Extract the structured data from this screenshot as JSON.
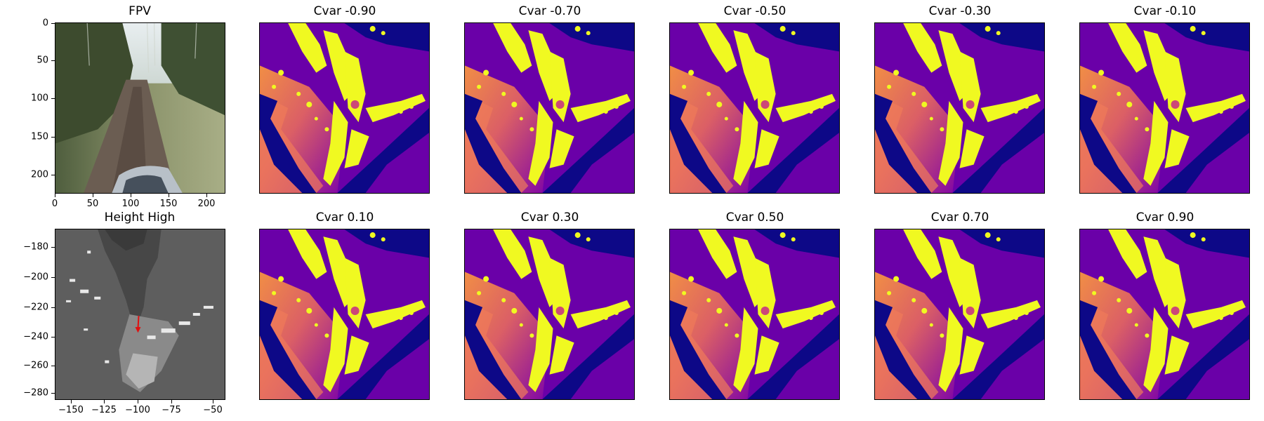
{
  "fpv": {
    "title": "FPV",
    "xticks": [
      "0",
      "50",
      "100",
      "150",
      "200"
    ],
    "yticks": [
      "0",
      "50",
      "100",
      "150",
      "200"
    ]
  },
  "height": {
    "title": "Height High",
    "xticks": [
      "−150",
      "−125",
      "−100",
      "−75",
      "−50"
    ],
    "yticks": [
      "−180",
      "−200",
      "−220",
      "−240",
      "−260",
      "−280"
    ],
    "arrow_color": "#e01010"
  },
  "cvar_titles": [
    "Cvar -0.90",
    "Cvar -0.70",
    "Cvar -0.50",
    "Cvar -0.30",
    "Cvar -0.10",
    "Cvar 0.10",
    "Cvar 0.30",
    "Cvar 0.50",
    "Cvar 0.70",
    "Cvar 0.90"
  ],
  "colors": {
    "colormap": "plasma",
    "low": "#0d0887",
    "mid": "#7e03a8",
    "warm": "#e16462",
    "high": "#f0f921"
  }
}
